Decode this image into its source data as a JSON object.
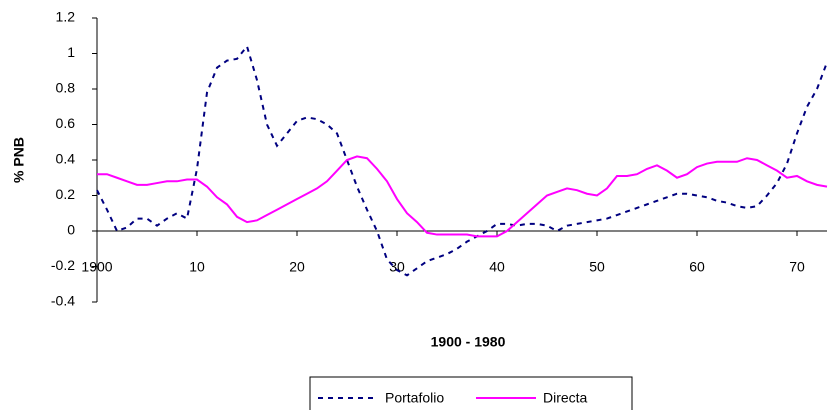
{
  "chart_data": {
    "type": "line",
    "y_label": "% PNB",
    "x_label": "1900 - 1980",
    "x": [
      0,
      1,
      2,
      3,
      4,
      5,
      6,
      7,
      8,
      9,
      10,
      11,
      12,
      13,
      14,
      15,
      16,
      17,
      18,
      19,
      20,
      21,
      22,
      23,
      24,
      25,
      26,
      27,
      28,
      29,
      30,
      31,
      32,
      33,
      34,
      35,
      36,
      37,
      38,
      39,
      40,
      41,
      42,
      43,
      44,
      45,
      46,
      47,
      48,
      49,
      50,
      51,
      52,
      53,
      54,
      55,
      56,
      57,
      58,
      59,
      60,
      61,
      62,
      63,
      64,
      65,
      66,
      67,
      68,
      69,
      70,
      71,
      72,
      73
    ],
    "series": [
      {
        "name": "Portafolio",
        "color": "#000080",
        "dash": true,
        "values": [
          0.23,
          0.12,
          0.0,
          0.02,
          0.07,
          0.07,
          0.03,
          0.07,
          0.1,
          0.07,
          0.35,
          0.78,
          0.92,
          0.96,
          0.97,
          1.04,
          0.85,
          0.6,
          0.48,
          0.55,
          0.62,
          0.64,
          0.63,
          0.6,
          0.55,
          0.4,
          0.25,
          0.12,
          0.0,
          -0.16,
          -0.22,
          -0.25,
          -0.21,
          -0.17,
          -0.15,
          -0.13,
          -0.1,
          -0.06,
          -0.03,
          0.0,
          0.04,
          0.04,
          0.03,
          0.04,
          0.04,
          0.03,
          0.0,
          0.03,
          0.04,
          0.05,
          0.06,
          0.07,
          0.09,
          0.11,
          0.13,
          0.15,
          0.17,
          0.19,
          0.21,
          0.21,
          0.2,
          0.19,
          0.17,
          0.16,
          0.14,
          0.13,
          0.14,
          0.2,
          0.27,
          0.38,
          0.55,
          0.7,
          0.8,
          0.95
        ]
      },
      {
        "name": "Directa",
        "color": "#ff00ff",
        "dash": false,
        "values": [
          0.32,
          0.32,
          0.3,
          0.28,
          0.26,
          0.26,
          0.27,
          0.28,
          0.28,
          0.29,
          0.29,
          0.25,
          0.19,
          0.15,
          0.08,
          0.05,
          0.06,
          0.09,
          0.12,
          0.15,
          0.18,
          0.21,
          0.24,
          0.28,
          0.34,
          0.4,
          0.42,
          0.41,
          0.35,
          0.28,
          0.18,
          0.1,
          0.05,
          -0.01,
          -0.02,
          -0.02,
          -0.02,
          -0.02,
          -0.03,
          -0.03,
          -0.03,
          0.0,
          0.05,
          0.1,
          0.15,
          0.2,
          0.22,
          0.24,
          0.23,
          0.21,
          0.2,
          0.24,
          0.31,
          0.31,
          0.32,
          0.35,
          0.37,
          0.34,
          0.3,
          0.32,
          0.36,
          0.38,
          0.39,
          0.39,
          0.39,
          0.41,
          0.4,
          0.37,
          0.34,
          0.3,
          0.31,
          0.28,
          0.26,
          0.25
        ]
      }
    ],
    "xlim": [
      0,
      73
    ],
    "xticks": [
      {
        "value": 0,
        "label": "1900"
      },
      10,
      20,
      30,
      40,
      50,
      60,
      70
    ],
    "ylim": [
      -0.4,
      1.2
    ],
    "yticks": [
      1.2,
      1,
      0.8,
      0.6,
      0.4,
      0.2,
      0,
      -0.2,
      -0.4
    ],
    "grid": false
  }
}
